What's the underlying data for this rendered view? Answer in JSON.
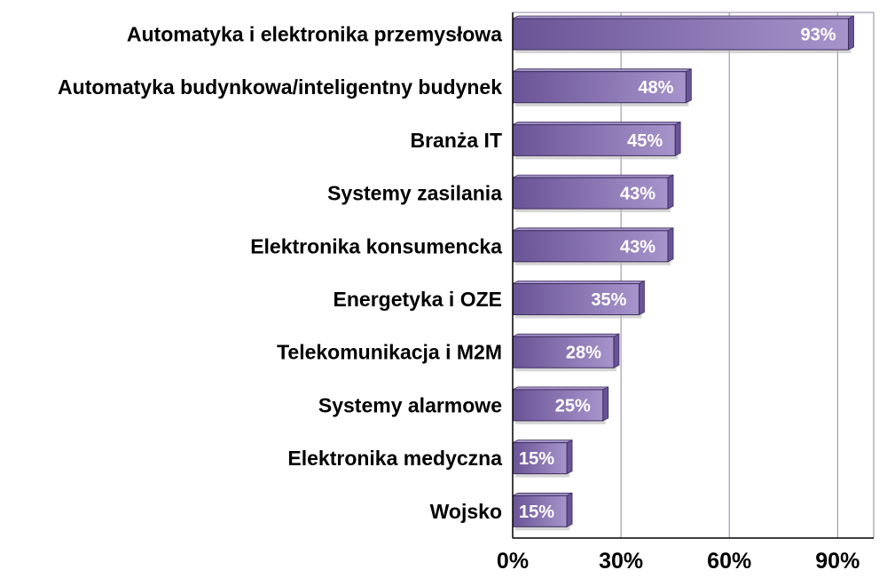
{
  "chart_data": {
    "type": "bar",
    "orientation": "horizontal",
    "categories": [
      "Automatyka i elektronika przemysłowa",
      "Automatyka budynkowa/inteligentny budynek",
      "Branża IT",
      "Systemy zasilania",
      "Elektronika konsumencka",
      "Energetyka i OZE",
      "Telekomunikacja i M2M",
      "Systemy alarmowe",
      "Elektronika medyczna",
      "Wojsko"
    ],
    "values": [
      93,
      48,
      45,
      43,
      43,
      35,
      28,
      25,
      15,
      15
    ],
    "value_labels": [
      "93%",
      "48%",
      "45%",
      "43%",
      "43%",
      "35%",
      "28%",
      "25%",
      "15%",
      "15%"
    ],
    "xticks": [
      0,
      30,
      60,
      90
    ],
    "xtick_labels": [
      "0%",
      "30%",
      "60%",
      "90%"
    ],
    "xlim": [
      0,
      100
    ],
    "grid": "vertical",
    "legend": "none",
    "colors": {
      "bar_dark": "#6a5396",
      "bar_light": "#a794cb",
      "bar_edge": "#3c2e5c",
      "bar_shadow": "#b9b9b9",
      "grid": "#8e86a8",
      "axis": "#000000"
    }
  }
}
